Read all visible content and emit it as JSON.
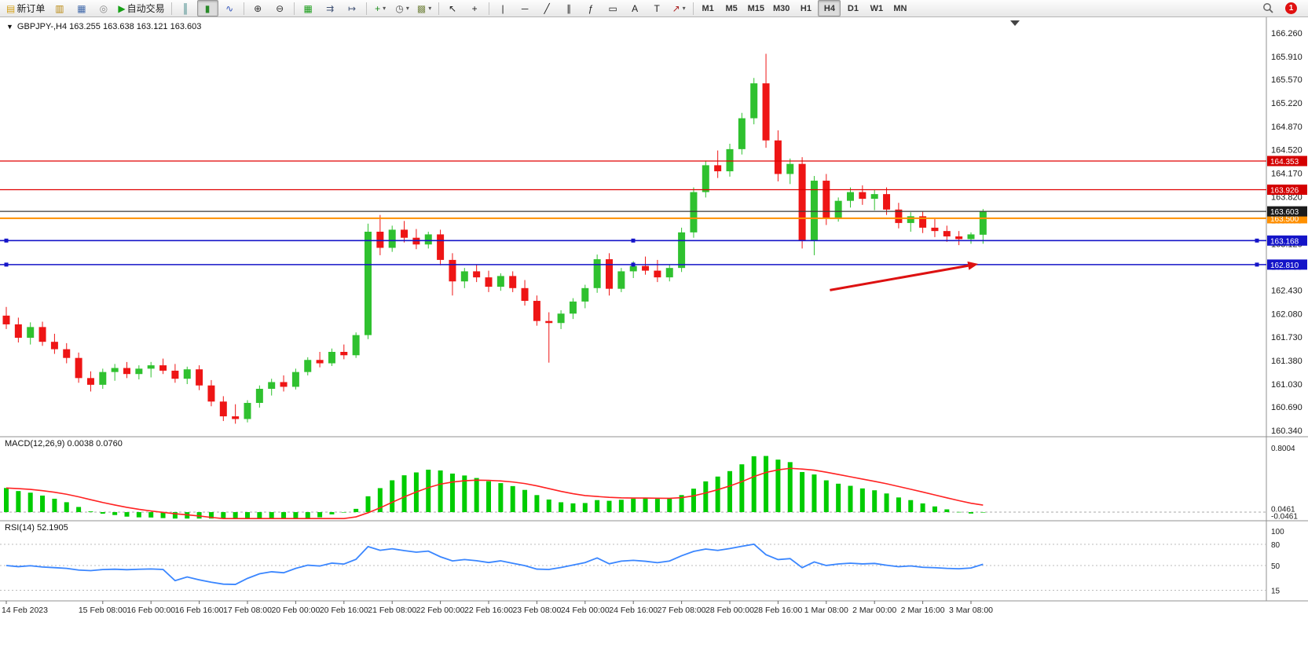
{
  "window": {
    "badge_count": "1"
  },
  "toolbar": {
    "groups": [
      {
        "name": "trade-group",
        "items": [
          {
            "name": "new-order-button",
            "glyph": "▤",
            "color": "#d4a017",
            "label": "新订单"
          },
          {
            "name": "market-watch-button",
            "glyph": "▥",
            "color": "#b8860b"
          },
          {
            "name": "data-window-button",
            "glyph": "▦",
            "color": "#4169aa"
          },
          {
            "name": "navigator-button",
            "glyph": "◎",
            "color": "#888888"
          },
          {
            "name": "auto-trading-button",
            "glyph": "▶",
            "color": "#15a015",
            "label": "自动交易"
          }
        ]
      },
      {
        "name": "chart-type-group",
        "items": [
          {
            "name": "bar-chart-button",
            "glyph": "║",
            "color": "#2a7a7a"
          },
          {
            "name": "candlestick-chart-button",
            "glyph": "▮",
            "color": "#2a8a2a",
            "active": true
          },
          {
            "name": "line-chart-button",
            "glyph": "∿",
            "color": "#3355bb"
          }
        ]
      },
      {
        "name": "zoom-group",
        "items": [
          {
            "name": "zoom-in-button",
            "glyph": "⊕",
            "color": "#333333"
          },
          {
            "name": "zoom-out-button",
            "glyph": "⊖",
            "color": "#333333"
          }
        ]
      },
      {
        "name": "scroll-group",
        "items": [
          {
            "name": "indicators-button",
            "glyph": "▦",
            "color": "#1e9e1e"
          },
          {
            "name": "auto-scroll-button",
            "glyph": "⇉",
            "color": "#445577"
          },
          {
            "name": "chart-shift-button",
            "glyph": "↦",
            "color": "#445577"
          }
        ]
      },
      {
        "name": "dropdown-group",
        "items": [
          {
            "name": "add-indicator-button",
            "glyph": "+",
            "color": "#1e8e1e",
            "dropdown": true
          },
          {
            "name": "periods-button",
            "glyph": "◷",
            "color": "#555555",
            "dropdown": true
          },
          {
            "name": "templates-button",
            "glyph": "▩",
            "color": "#7a8a4a",
            "dropdown": true
          }
        ]
      },
      {
        "name": "cursor-group",
        "items": [
          {
            "name": "cursor-button",
            "glyph": "↖",
            "color": "#222222"
          },
          {
            "name": "crosshair-button",
            "glyph": "+",
            "color": "#222222"
          }
        ]
      },
      {
        "name": "objects-group",
        "items": [
          {
            "name": "vertical-line-button",
            "glyph": "|",
            "color": "#222222"
          },
          {
            "name": "horizontal-line-button",
            "glyph": "─",
            "color": "#222222"
          },
          {
            "name": "trendline-button",
            "glyph": "╱",
            "color": "#222222"
          },
          {
            "name": "channel-button",
            "glyph": "∥",
            "color": "#222222"
          },
          {
            "name": "fibonacci-button",
            "glyph": "ƒ",
            "color": "#222222"
          },
          {
            "name": "shapes-button",
            "glyph": "▭",
            "color": "#222222"
          },
          {
            "name": "text-button",
            "glyph": "A",
            "color": "#222222"
          },
          {
            "name": "label-button",
            "glyph": "T",
            "color": "#222222"
          },
          {
            "name": "arrows-button",
            "glyph": "↗",
            "color": "#aa2222",
            "dropdown": true
          }
        ]
      }
    ],
    "timeframes": {
      "options": [
        "M1",
        "M5",
        "M15",
        "M30",
        "H1",
        "H4",
        "D1",
        "W1",
        "MN"
      ],
      "active": "H4"
    }
  },
  "chart": {
    "title": "GBPJPY-,H4 163.255 163.638 163.121 163.603",
    "symbol": "GBPJPY-",
    "period": "H4",
    "open": "163.255",
    "high": "163.638",
    "low": "163.121",
    "close": "163.603"
  },
  "chart_data": {
    "type": "candlestick",
    "symbol": "GBPJPY-",
    "timeframe": "H4",
    "price_range": [
      160.34,
      166.26
    ],
    "y_ticks": [
      "166.260",
      "165.910",
      "165.570",
      "165.220",
      "164.870",
      "164.520",
      "164.170",
      "163.820",
      "163.470",
      "163.120",
      "162.780",
      "162.430",
      "162.080",
      "161.730",
      "161.380",
      "161.030",
      "160.690",
      "160.340"
    ],
    "x_labels": [
      {
        "i": 0,
        "label": "14 Feb 2023"
      },
      {
        "i": 8,
        "label": "15 Feb 08:00"
      },
      {
        "i": 12,
        "label": "16 Feb 00:00"
      },
      {
        "i": 16,
        "label": "16 Feb 16:00"
      },
      {
        "i": 20,
        "label": "17 Feb 08:00"
      },
      {
        "i": 24,
        "label": "20 Feb 00:00"
      },
      {
        "i": 28,
        "label": "20 Feb 16:00"
      },
      {
        "i": 32,
        "label": "21 Feb 08:00"
      },
      {
        "i": 36,
        "label": "22 Feb 00:00"
      },
      {
        "i": 40,
        "label": "22 Feb 16:00"
      },
      {
        "i": 44,
        "label": "23 Feb 08:00"
      },
      {
        "i": 48,
        "label": "24 Feb 00:00"
      },
      {
        "i": 52,
        "label": "24 Feb 16:00"
      },
      {
        "i": 56,
        "label": "27 Feb 08:00"
      },
      {
        "i": 60,
        "label": "28 Feb 00:00"
      },
      {
        "i": 64,
        "label": "28 Feb 16:00"
      },
      {
        "i": 68,
        "label": "1 Mar 08:00"
      },
      {
        "i": 72,
        "label": "2 Mar 00:00"
      },
      {
        "i": 76,
        "label": "2 Mar 16:00"
      },
      {
        "i": 80,
        "label": "3 Mar 08:00"
      }
    ],
    "candles": [
      [
        162.05,
        162.18,
        161.85,
        161.92
      ],
      [
        161.92,
        162.02,
        161.65,
        161.72
      ],
      [
        161.72,
        161.95,
        161.62,
        161.88
      ],
      [
        161.88,
        161.96,
        161.6,
        161.66
      ],
      [
        161.66,
        161.78,
        161.48,
        161.55
      ],
      [
        161.55,
        161.64,
        161.34,
        161.42
      ],
      [
        161.42,
        161.5,
        161.05,
        161.12
      ],
      [
        161.12,
        161.22,
        160.92,
        161.02
      ],
      [
        161.02,
        161.26,
        160.96,
        161.21
      ],
      [
        161.21,
        161.33,
        161.08,
        161.27
      ],
      [
        161.27,
        161.36,
        161.12,
        161.18
      ],
      [
        161.18,
        161.31,
        161.1,
        161.26
      ],
      [
        161.26,
        161.36,
        161.13,
        161.31
      ],
      [
        161.31,
        161.41,
        161.18,
        161.23
      ],
      [
        161.23,
        161.33,
        161.05,
        161.11
      ],
      [
        161.11,
        161.29,
        161.03,
        161.25
      ],
      [
        161.25,
        161.31,
        160.94,
        161.01
      ],
      [
        161.01,
        161.09,
        160.7,
        160.77
      ],
      [
        160.77,
        160.85,
        160.48,
        160.55
      ],
      [
        160.55,
        160.73,
        160.44,
        160.51
      ],
      [
        160.51,
        160.79,
        160.46,
        160.75
      ],
      [
        160.75,
        161.01,
        160.68,
        160.96
      ],
      [
        160.96,
        161.11,
        160.86,
        161.06
      ],
      [
        161.06,
        161.16,
        160.92,
        160.99
      ],
      [
        160.99,
        161.26,
        160.95,
        161.21
      ],
      [
        161.21,
        161.43,
        161.16,
        161.39
      ],
      [
        161.39,
        161.51,
        161.28,
        161.34
      ],
      [
        161.34,
        161.56,
        161.3,
        161.51
      ],
      [
        161.51,
        161.62,
        161.4,
        161.46
      ],
      [
        161.46,
        161.8,
        161.42,
        161.76
      ],
      [
        161.76,
        163.42,
        161.7,
        163.3
      ],
      [
        163.3,
        163.55,
        162.95,
        163.06
      ],
      [
        163.06,
        163.39,
        163.0,
        163.33
      ],
      [
        163.33,
        163.46,
        163.14,
        163.21
      ],
      [
        163.21,
        163.34,
        163.04,
        163.11
      ],
      [
        163.11,
        163.3,
        163.05,
        163.26
      ],
      [
        163.26,
        163.33,
        162.8,
        162.88
      ],
      [
        162.88,
        162.98,
        162.35,
        162.56
      ],
      [
        162.56,
        162.76,
        162.46,
        162.71
      ],
      [
        162.71,
        162.81,
        162.55,
        162.62
      ],
      [
        162.62,
        162.72,
        162.4,
        162.48
      ],
      [
        162.48,
        162.68,
        162.42,
        162.64
      ],
      [
        162.64,
        162.71,
        162.4,
        162.46
      ],
      [
        162.46,
        162.58,
        162.2,
        162.27
      ],
      [
        162.27,
        162.35,
        161.9,
        161.97
      ],
      [
        161.97,
        162.1,
        161.35,
        161.94
      ],
      [
        161.94,
        162.13,
        161.85,
        162.08
      ],
      [
        162.08,
        162.31,
        162.0,
        162.26
      ],
      [
        162.26,
        162.51,
        162.16,
        162.46
      ],
      [
        162.46,
        162.96,
        162.39,
        162.89
      ],
      [
        162.89,
        162.98,
        162.35,
        162.45
      ],
      [
        162.45,
        162.76,
        162.4,
        162.71
      ],
      [
        162.71,
        162.86,
        162.61,
        162.79
      ],
      [
        162.79,
        162.93,
        162.66,
        162.72
      ],
      [
        162.72,
        162.88,
        162.55,
        162.62
      ],
      [
        162.62,
        162.81,
        162.56,
        162.76
      ],
      [
        162.76,
        163.36,
        162.7,
        163.29
      ],
      [
        163.29,
        163.96,
        163.21,
        163.89
      ],
      [
        163.89,
        164.36,
        163.81,
        164.29
      ],
      [
        164.29,
        164.51,
        164.1,
        164.2
      ],
      [
        164.2,
        164.61,
        164.12,
        164.53
      ],
      [
        164.53,
        165.07,
        164.45,
        164.99
      ],
      [
        164.99,
        165.59,
        164.9,
        165.51
      ],
      [
        165.51,
        165.95,
        164.55,
        164.66
      ],
      [
        164.66,
        164.81,
        164.05,
        164.16
      ],
      [
        164.16,
        164.39,
        164.01,
        164.31
      ],
      [
        164.31,
        164.41,
        163.05,
        163.16
      ],
      [
        163.16,
        164.13,
        162.95,
        164.06
      ],
      [
        164.06,
        164.16,
        163.4,
        163.51
      ],
      [
        163.51,
        163.81,
        163.45,
        163.76
      ],
      [
        163.76,
        163.96,
        163.66,
        163.89
      ],
      [
        163.89,
        163.99,
        163.7,
        163.79
      ],
      [
        163.79,
        163.93,
        163.62,
        163.86
      ],
      [
        163.86,
        163.96,
        163.55,
        163.63
      ],
      [
        163.63,
        163.73,
        163.35,
        163.43
      ],
      [
        163.43,
        163.59,
        163.3,
        163.53
      ],
      [
        163.53,
        163.61,
        163.28,
        163.36
      ],
      [
        163.36,
        163.49,
        163.22,
        163.31
      ],
      [
        163.31,
        163.39,
        163.15,
        163.23
      ],
      [
        163.23,
        163.31,
        163.1,
        163.19
      ],
      [
        163.19,
        163.29,
        163.12,
        163.26
      ],
      [
        163.255,
        163.638,
        163.121,
        163.603
      ]
    ],
    "colors": {
      "bull": "#2fc12f",
      "bear": "#ee1515",
      "background": "#ffffff",
      "axis_text": "#1a1a1a"
    },
    "hlines": [
      {
        "price": 164.353,
        "label": "164.353",
        "color": "#e00000",
        "width": 1.3,
        "tag_bg": "#d40000"
      },
      {
        "price": 163.926,
        "label": "163.926",
        "color": "#e00000",
        "width": 1.3,
        "tag_bg": "#d40000"
      },
      {
        "price": 163.5,
        "label": "163.500",
        "color": "#ff9000",
        "width": 2,
        "tag_bg": "#ff9000"
      },
      {
        "price": 163.603,
        "label": "163.603",
        "color": "#3a3a3a",
        "width": 1.2,
        "tag_bg": "#1b1b1b",
        "role": "bid-price-line"
      },
      {
        "price": 163.168,
        "label": "163.168",
        "color": "#1414c8",
        "width": 1.6,
        "tag_bg": "#1414c8",
        "handles": true
      },
      {
        "price": 162.81,
        "label": "162.810",
        "color": "#1414c8",
        "width": 1.6,
        "tag_bg": "#1414c8",
        "handles": true
      }
    ],
    "arrow": {
      "color": "#dd1111",
      "tail": {
        "index": 68.3,
        "price": 162.43
      },
      "tip": {
        "index": 80.6,
        "price": 162.82
      }
    },
    "macd": {
      "display": "MACD(12,26,9) 0.0038 0.0760",
      "fast": 12,
      "slow": 26,
      "signal": 9,
      "current_macd": "0.0038",
      "current_signal": "0.0760",
      "axis_labels": [
        "0.8004",
        "0.0461",
        "-0.0461"
      ],
      "histogram_color": "#00cc00",
      "signal_color": "#ff2222",
      "seed_offset": 0.3
    },
    "rsi": {
      "display": "RSI(14) 52.1905",
      "period": 14,
      "current": "52.1905",
      "levels": [
        80,
        50,
        15
      ],
      "axis_labels": [
        "100",
        "80",
        "50",
        "15"
      ],
      "color": "#3a86ff"
    }
  }
}
